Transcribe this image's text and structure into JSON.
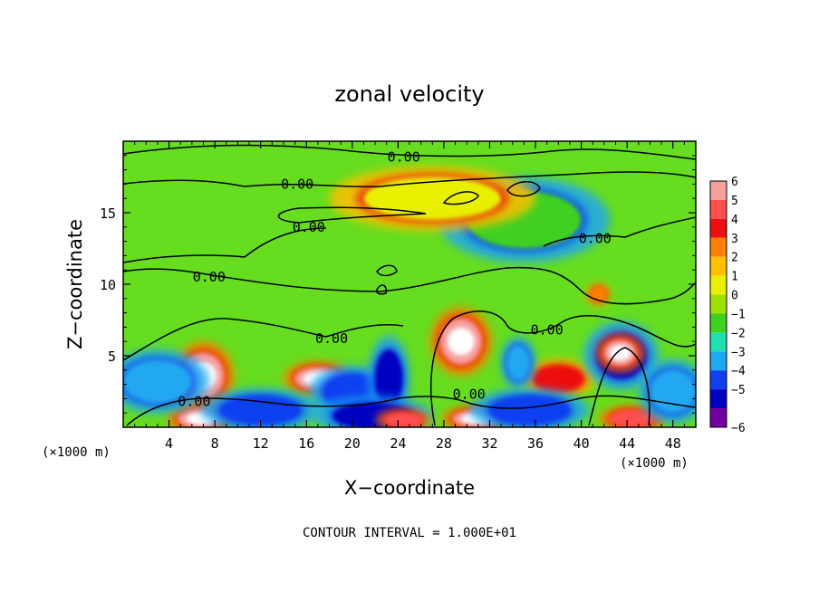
{
  "chart_data": {
    "type": "heatmap",
    "title": "zonal velocity",
    "xlabel": "X−coordinate",
    "ylabel": "Z−coordinate",
    "x_unit_label_left": "(×1000 m)",
    "x_unit_label_right": "(×1000 m)",
    "footer": "CONTOUR INTERVAL = 1.000E+01",
    "xlim": [
      0,
      50
    ],
    "ylim": [
      0,
      20
    ],
    "x_ticks": [
      4,
      8,
      12,
      16,
      20,
      24,
      28,
      32,
      36,
      40,
      44,
      48
    ],
    "x_tick_labels": [
      "4",
      "8",
      "12",
      "16",
      "20",
      "24",
      "28",
      "32",
      "36",
      "40",
      "44",
      "48"
    ],
    "y_ticks": [
      5,
      10,
      15
    ],
    "y_tick_labels": [
      "5",
      "10",
      "15"
    ],
    "colorbar": {
      "levels": [
        6,
        5,
        4,
        3,
        2,
        1,
        0,
        -1,
        -2,
        -3,
        -4,
        -5,
        -6
      ],
      "labels": [
        "6",
        "5",
        "4",
        "3",
        "2",
        "1",
        "0",
        "−1",
        "−2",
        "−3",
        "−4",
        "−5",
        "−6"
      ],
      "colors": [
        "#f7a0a0",
        "#ff5050",
        "#ee1010",
        "#ff8000",
        "#ffc000",
        "#e8f000",
        "#a0e000",
        "#40d020",
        "#20e0b0",
        "#20a8f0",
        "#1040f0",
        "#0000c0",
        "#7000a0"
      ]
    },
    "background_color": "#66dd1e",
    "contour_line_label": "0.00",
    "contour_label_positions": [
      {
        "x": 24.5,
        "z": 18.9
      },
      {
        "x": 15.2,
        "z": 17.0
      },
      {
        "x": 16.2,
        "z": 14.0
      },
      {
        "x": 41.2,
        "z": 13.2
      },
      {
        "x": 7.5,
        "z": 10.5
      },
      {
        "x": 18.2,
        "z": 6.2
      },
      {
        "x": 37.0,
        "z": 6.8
      },
      {
        "x": 30.2,
        "z": 2.3
      },
      {
        "x": 6.2,
        "z": 1.8
      }
    ],
    "features": [
      {
        "x": 7.0,
        "z": 3.6,
        "value": 6,
        "rx": 1.8,
        "rz": 1.6
      },
      {
        "x": 17.0,
        "z": 3.4,
        "value": 6,
        "rx": 2.0,
        "rz": 0.8
      },
      {
        "x": 29.5,
        "z": 6.0,
        "value": 6,
        "rx": 1.8,
        "rz": 1.6
      },
      {
        "x": 38.0,
        "z": 3.4,
        "value": 4,
        "rx": 2.2,
        "rz": 0.9
      },
      {
        "x": 43.5,
        "z": 5.0,
        "value": -5,
        "rx": 2.2,
        "rz": 1.6
      },
      {
        "x": 43.4,
        "z": 5.2,
        "value": 6,
        "rx": 1.4,
        "rz": 0.9
      },
      {
        "x": 6.8,
        "z": 0.6,
        "value": 6,
        "rx": 2.0,
        "rz": 0.7
      },
      {
        "x": 20.0,
        "z": 2.5,
        "value": -4,
        "rx": 2.5,
        "rz": 1.2
      },
      {
        "x": 23.2,
        "z": 3.4,
        "value": -5,
        "rx": 1.2,
        "rz": 2.0
      },
      {
        "x": 21.8,
        "z": 0.8,
        "value": -5,
        "rx": 3.5,
        "rz": 0.9
      },
      {
        "x": 12.0,
        "z": 1.2,
        "value": -4,
        "rx": 3.5,
        "rz": 1.0
      },
      {
        "x": 30.8,
        "z": 0.6,
        "value": 6,
        "rx": 2.0,
        "rz": 0.6
      },
      {
        "x": 24.5,
        "z": 0.5,
        "value": 5,
        "rx": 1.6,
        "rz": 0.5
      },
      {
        "x": 35.5,
        "z": 1.2,
        "value": -4,
        "rx": 3.5,
        "rz": 1.0
      },
      {
        "x": 44.5,
        "z": 0.6,
        "value": 5,
        "rx": 2.0,
        "rz": 0.6
      },
      {
        "x": 3.0,
        "z": 3.2,
        "value": -3,
        "rx": 3.0,
        "rz": 1.5
      },
      {
        "x": 34.5,
        "z": 4.5,
        "value": -3,
        "rx": 1.0,
        "rz": 1.2
      },
      {
        "x": 48.0,
        "z": 2.5,
        "value": -3,
        "rx": 2.0,
        "rz": 1.5
      },
      {
        "x": 41.5,
        "z": 9.3,
        "value": 3,
        "rx": 0.7,
        "rz": 0.5
      },
      {
        "x": 35.0,
        "z": 14.5,
        "value": -1,
        "rx": 5.0,
        "rz": 2.0
      },
      {
        "x": 27.0,
        "z": 16.0,
        "value": 1,
        "rx": 6.0,
        "rz": 1.5
      }
    ]
  }
}
